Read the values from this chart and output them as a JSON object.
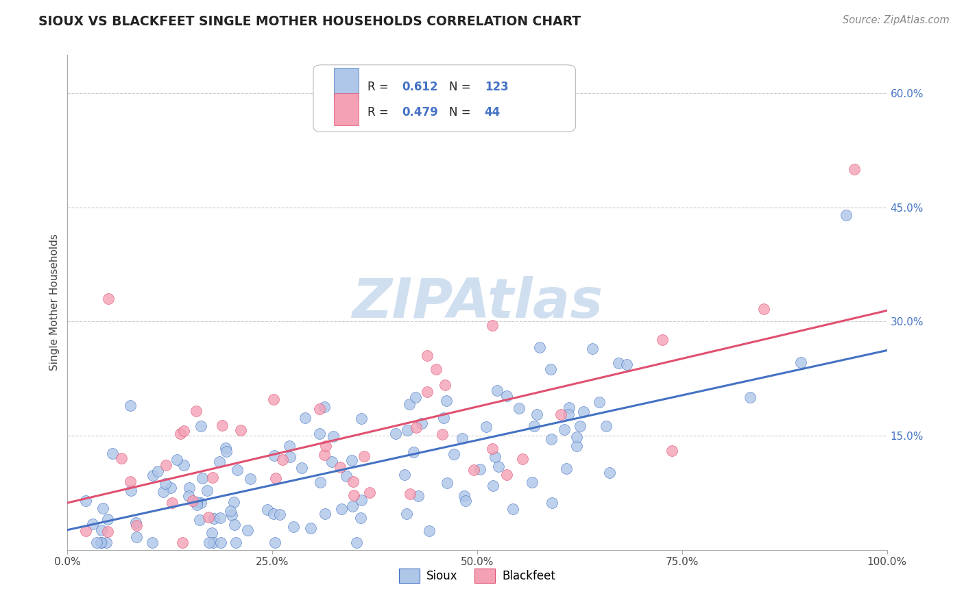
{
  "title": "SIOUX VS BLACKFEET SINGLE MOTHER HOUSEHOLDS CORRELATION CHART",
  "source": "Source: ZipAtlas.com",
  "ylabel": "Single Mother Households",
  "sioux_R": 0.612,
  "sioux_N": 123,
  "blackfeet_R": 0.479,
  "blackfeet_N": 44,
  "sioux_color": "#aec6e8",
  "sioux_line_color": "#4472c4",
  "blackfeet_color": "#f4a0b5",
  "blackfeet_line_color": "#e05070",
  "background_color": "#ffffff",
  "grid_color": "#cccccc",
  "watermark": "ZIPAtlas",
  "watermark_color": "#d0dff0",
  "tick_color": "#4472c4",
  "title_color": "#222222",
  "source_color": "#888888",
  "label_color": "#444444"
}
